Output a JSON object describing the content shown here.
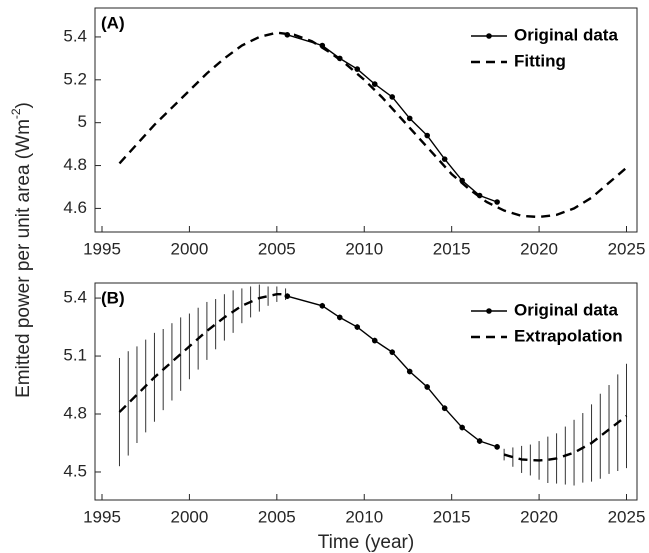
{
  "ylabel": {
    "text": "Emitted power per unit area (Wm",
    "sup": "-2",
    "close": ")"
  },
  "chart_data": [
    {
      "type": "line",
      "panel_label": "(A)",
      "xlim": [
        1994.6,
        2025.6
      ],
      "xticks": [
        1995,
        2000,
        2005,
        2010,
        2015,
        2020,
        2025
      ],
      "ylim": [
        4.49,
        5.535
      ],
      "yticks": [
        4.6,
        4.8,
        5,
        5.2,
        5.4
      ],
      "legend": "upper right",
      "series": [
        {
          "name": "Original data",
          "color": "#000000",
          "style": "solid",
          "marker": true,
          "x": [
            2005.6,
            2007.6,
            2008.6,
            2009.6,
            2010.6,
            2011.6,
            2012.6,
            2013.6,
            2014.6,
            2015.6,
            2016.6,
            2017.6
          ],
          "values": [
            5.41,
            5.36,
            5.3,
            5.25,
            5.18,
            5.12,
            5.02,
            4.94,
            4.83,
            4.73,
            4.66,
            4.63
          ]
        },
        {
          "name": "Fitting",
          "color": "#000000",
          "style": "dashed",
          "marker": false,
          "x": [
            1996,
            1997,
            1998,
            1999,
            2000,
            2001,
            2002,
            2003,
            2004,
            2005,
            2006,
            2007,
            2008,
            2009,
            2010,
            2011,
            2012,
            2013,
            2014,
            2015,
            2016,
            2017,
            2018,
            2019,
            2020,
            2021,
            2022,
            2023,
            2024,
            2025
          ],
          "values": [
            4.81,
            4.9,
            4.99,
            5.07,
            5.15,
            5.23,
            5.3,
            5.36,
            5.4,
            5.42,
            5.41,
            5.38,
            5.33,
            5.27,
            5.2,
            5.12,
            5.03,
            4.94,
            4.85,
            4.76,
            4.69,
            4.63,
            4.59,
            4.565,
            4.56,
            4.57,
            4.6,
            4.65,
            4.72,
            4.79
          ]
        }
      ]
    },
    {
      "type": "line",
      "panel_label": "(B)",
      "xlabel": "Time (year)",
      "xlim": [
        1994.6,
        2025.6
      ],
      "xticks": [
        1995,
        2000,
        2005,
        2010,
        2015,
        2020,
        2025
      ],
      "ylim": [
        4.355,
        5.478
      ],
      "yticks": [
        4.5,
        4.8,
        5.1,
        5.4
      ],
      "legend": "upper right",
      "series": [
        {
          "name": "Original data",
          "color": "#000000",
          "style": "solid",
          "marker": true,
          "x": [
            2005.6,
            2007.6,
            2008.6,
            2009.6,
            2010.6,
            2011.6,
            2012.6,
            2013.6,
            2014.6,
            2015.6,
            2016.6,
            2017.6
          ],
          "values": [
            5.41,
            5.36,
            5.3,
            5.25,
            5.18,
            5.12,
            5.02,
            4.94,
            4.83,
            4.73,
            4.66,
            4.63
          ],
          "errors": [
            0.015,
            0.015,
            0.015,
            0.015,
            0.015,
            0.015,
            0.015,
            0.015,
            0.015,
            0.015,
            0.015,
            0.015
          ]
        },
        {
          "name": "Extrapolation",
          "color": "#000000",
          "style": "dashed",
          "marker": false,
          "x": [
            1996,
            1996.5,
            1997,
            1997.5,
            1998,
            1998.5,
            1999,
            1999.5,
            2000,
            2000.5,
            2001,
            2001.5,
            2002,
            2002.5,
            2003,
            2003.5,
            2004,
            2004.5,
            2005,
            2005.5,
            2012,
            2018,
            2018.5,
            2019,
            2019.5,
            2020,
            2020.5,
            2021,
            2021.5,
            2022,
            2022.5,
            2023,
            2023.5,
            2024,
            2024.5,
            2025
          ],
          "values": [
            4.81,
            4.855,
            4.9,
            4.945,
            4.99,
            5.03,
            5.07,
            5.11,
            5.15,
            5.19,
            5.23,
            5.265,
            5.3,
            5.33,
            5.36,
            5.38,
            5.4,
            5.41,
            5.42,
            5.42,
            null,
            4.59,
            4.577,
            4.565,
            4.562,
            4.56,
            4.563,
            4.57,
            4.585,
            4.6,
            4.625,
            4.65,
            4.685,
            4.72,
            4.755,
            4.79
          ],
          "errors": [
            0.28,
            0.27,
            0.25,
            0.24,
            0.23,
            0.21,
            0.2,
            0.19,
            0.17,
            0.16,
            0.15,
            0.13,
            0.12,
            0.11,
            0.09,
            0.08,
            0.07,
            0.05,
            0.04,
            0.03,
            null,
            0.03,
            0.05,
            0.07,
            0.08,
            0.1,
            0.12,
            0.13,
            0.15,
            0.17,
            0.18,
            0.2,
            0.22,
            0.23,
            0.25,
            0.27
          ]
        }
      ]
    }
  ]
}
